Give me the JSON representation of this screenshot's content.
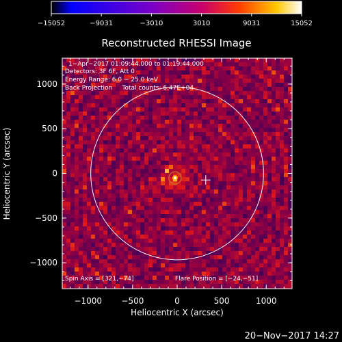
{
  "chart_data": {
    "type": "heatmap",
    "title": "Reconstructed RHESSI Image",
    "xlabel": "Heliocentric X (arcsec)",
    "ylabel": "Heliocentric Y (arcsec)",
    "xlim": [
      -1290,
      1290
    ],
    "ylim": [
      -1290,
      1290
    ],
    "x_ticks": [
      -1000,
      -500,
      0,
      500,
      1000
    ],
    "x_tick_labels": [
      "−1000",
      "−500",
      "0",
      "500",
      "1000"
    ],
    "y_ticks": [
      -1000,
      -500,
      0,
      500,
      1000
    ],
    "y_tick_labels": [
      "−1000",
      "−500",
      "0",
      "500",
      "1000"
    ],
    "colorbar": {
      "range": [
        -15052,
        15052
      ],
      "tick_values": [
        -15052,
        -9031,
        -3010,
        3010,
        9031,
        15052
      ],
      "tick_labels": [
        "−15052",
        "−9031",
        "−3010",
        "3010",
        "9031",
        "15052"
      ],
      "colormap": [
        "#000000",
        "#0000ff",
        "#7a00c8",
        "#c8006e",
        "#ff3c00",
        "#ffc800",
        "#ffffff"
      ]
    },
    "annotations": [
      "1−Apr−2017 01:09:44.000 to 01:19:44.000",
      "Detectors: 3F 6F, Att 0",
      "Energy Range: 6.0 − 25.0 keV",
      "Back Projection     Total counts: 6.47E+04"
    ],
    "spin_axis_label": "Spin Axis = [321,−74]",
    "flare_position_label": "Flare Position = [−24,−51]",
    "flare_position": [
      -24,
      -51
    ],
    "spin_axis": [
      321,
      -74
    ],
    "solar_limb_radius": 970,
    "timestamp": "20−Nov−2017 14:27"
  }
}
